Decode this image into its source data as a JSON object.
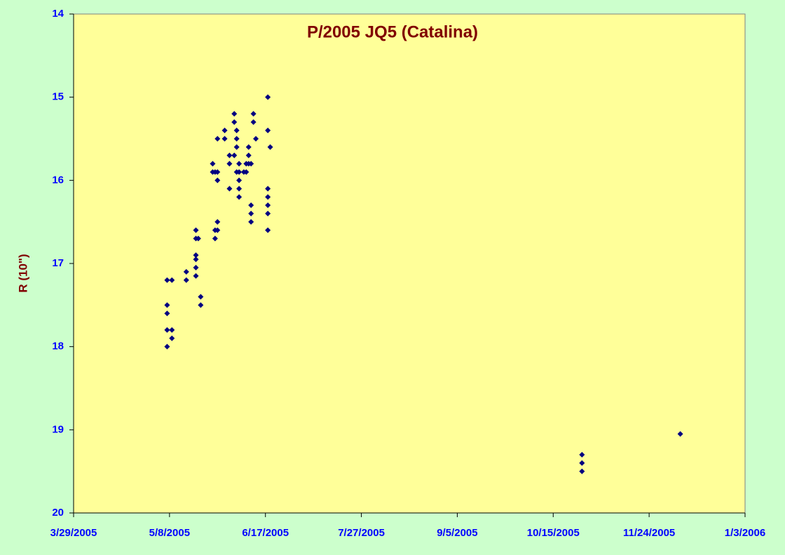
{
  "chart_data": {
    "type": "scatter",
    "title": "P/2005 JQ5 (Catalina)",
    "y_label": "R (10\")",
    "y_inverted": true,
    "grid": false,
    "series": [
      {
        "color": "#000080",
        "x": [
          "2005-05-07",
          "2005-05-07",
          "2005-05-07",
          "2005-05-07",
          "2005-05-07",
          "2005-05-09",
          "2005-05-09",
          "2005-05-09",
          "2005-05-15",
          "2005-05-15",
          "2005-05-19",
          "2005-05-19",
          "2005-05-19",
          "2005-05-19",
          "2005-05-19",
          "2005-05-19",
          "2005-05-20",
          "2005-05-21",
          "2005-05-21",
          "2005-05-26",
          "2005-05-26",
          "2005-05-27",
          "2005-05-27",
          "2005-05-27",
          "2005-05-28",
          "2005-05-28",
          "2005-05-28",
          "2005-05-28",
          "2005-05-28",
          "2005-05-31",
          "2005-05-31",
          "2005-06-02",
          "2005-06-02",
          "2005-06-02",
          "2005-06-04",
          "2005-06-04",
          "2005-06-04",
          "2005-06-05",
          "2005-06-05",
          "2005-06-05",
          "2005-06-05",
          "2005-06-06",
          "2005-06-06",
          "2005-06-06",
          "2005-06-06",
          "2005-06-06",
          "2005-06-08",
          "2005-06-09",
          "2005-06-09",
          "2005-06-10",
          "2005-06-10",
          "2005-06-10",
          "2005-06-11",
          "2005-06-11",
          "2005-06-11",
          "2005-06-11",
          "2005-06-12",
          "2005-06-12",
          "2005-06-13",
          "2005-06-18",
          "2005-06-18",
          "2005-06-18",
          "2005-06-18",
          "2005-06-18",
          "2005-06-18",
          "2005-06-18",
          "2005-06-19",
          "2005-10-27",
          "2005-10-27",
          "2005-10-27",
          "2005-12-07"
        ],
        "values": [
          17.2,
          17.5,
          17.6,
          17.8,
          18.0,
          17.2,
          17.8,
          17.9,
          17.1,
          17.2,
          16.6,
          16.7,
          16.9,
          16.95,
          17.05,
          17.15,
          16.7,
          17.4,
          17.5,
          15.8,
          15.9,
          15.9,
          16.6,
          16.7,
          15.5,
          15.9,
          16.0,
          16.5,
          16.6,
          15.4,
          15.5,
          15.7,
          15.8,
          16.1,
          15.2,
          15.3,
          15.7,
          15.4,
          15.5,
          15.6,
          15.9,
          15.8,
          15.9,
          16.0,
          16.1,
          16.2,
          15.9,
          15.8,
          15.9,
          15.6,
          15.7,
          15.8,
          15.8,
          16.3,
          16.4,
          16.5,
          15.2,
          15.3,
          15.5,
          15.0,
          15.4,
          16.1,
          16.2,
          16.3,
          16.4,
          16.6,
          15.6,
          19.3,
          19.4,
          19.5,
          19.05
        ]
      }
    ],
    "xlim": [
      "2005-03-29",
      "2006-01-03"
    ],
    "xticks": [
      {
        "value": "2005-03-29",
        "label": "3/29/2005"
      },
      {
        "value": "2005-05-08",
        "label": "5/8/2005"
      },
      {
        "value": "2005-06-17",
        "label": "6/17/2005"
      },
      {
        "value": "2005-07-27",
        "label": "7/27/2005"
      },
      {
        "value": "2005-09-05",
        "label": "9/5/2005"
      },
      {
        "value": "2005-10-15",
        "label": "10/15/2005"
      },
      {
        "value": "2005-11-24",
        "label": "11/24/2005"
      },
      {
        "value": "2006-01-03",
        "label": "1/3/2006"
      }
    ],
    "ylim": [
      14,
      20
    ],
    "yticks": [
      14,
      15,
      16,
      17,
      18,
      19,
      20
    ]
  }
}
